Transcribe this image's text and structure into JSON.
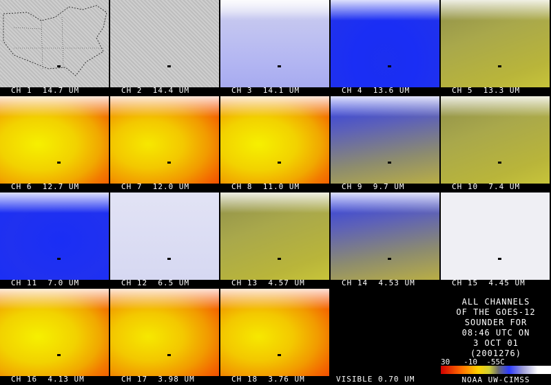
{
  "tiles": [
    {
      "label": "CH 1  14.7 UM"
    },
    {
      "label": "CH 2  14.4 UM"
    },
    {
      "label": "CH 3  14.1 UM"
    },
    {
      "label": "CH 4  13.6 UM"
    },
    {
      "label": "CH 5  13.3 UM"
    },
    {
      "label": "CH 6  12.7 UM"
    },
    {
      "label": "CH 7  12.0 UM"
    },
    {
      "label": "CH 8  11.0 UM"
    },
    {
      "label": "CH 9  9.7 UM"
    },
    {
      "label": "CH 10  7.4 UM"
    },
    {
      "label": "CH 11  7.0 UM"
    },
    {
      "label": "CH 12  6.5 UM"
    },
    {
      "label": "CH 13  4.57 UM"
    },
    {
      "label": "CH 14  4.53 UM"
    },
    {
      "label": "CH 15  4.45 UM"
    },
    {
      "label": "CH 16  4.13 UM"
    },
    {
      "label": "CH 17  3.98 UM"
    },
    {
      "label": "CH 18  3.76 UM"
    },
    {
      "label": "VISIBLE 0.70 UM"
    }
  ],
  "legend": {
    "line1": "ALL CHANNELS",
    "line2": "OF THE GOES-12",
    "line3": "SOUNDER FOR",
    "line4": "08:46 UTC ON",
    "line5": "3 OCT 01",
    "line6": "(2001276)",
    "scale": "30   -10  -55C",
    "credit": "NOAA UW-CIMSS"
  },
  "colorbar": {
    "min": "30",
    "mid": "-10",
    "max": "-55C"
  }
}
